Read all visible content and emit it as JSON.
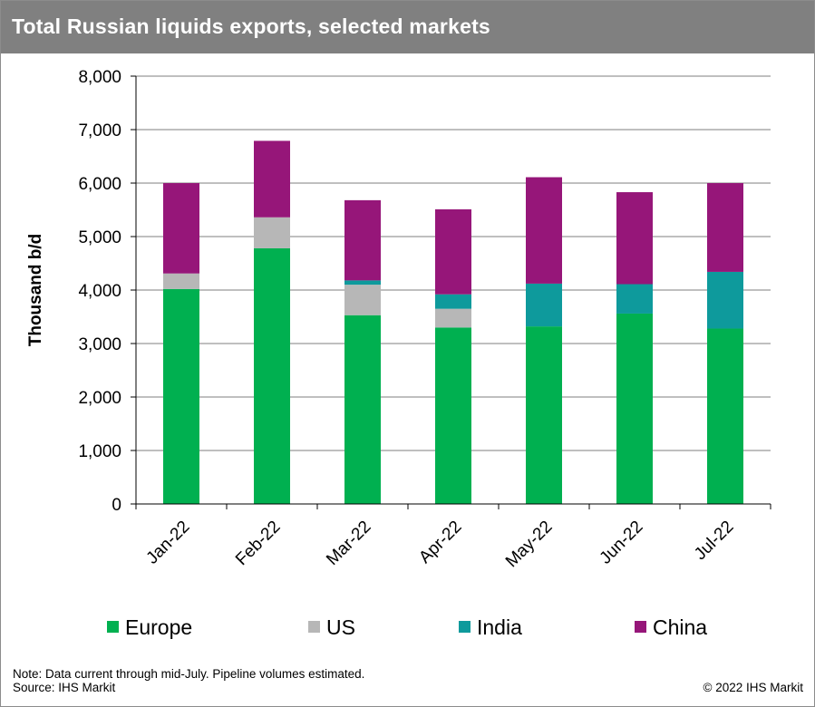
{
  "title": "Total Russian liquids exports, selected markets",
  "note_line1": "Note: Data current through mid-July. Pipeline volumes estimated.",
  "note_line2": "Source: IHS Markit",
  "copyright": "© 2022 IHS Markit",
  "colors": {
    "title_bar": "#808080",
    "Europe": "#00b050",
    "US": "#b7b7b7",
    "India": "#0e9a9c",
    "China": "#961679",
    "grid": "#7f7f7f"
  },
  "chart_data": {
    "type": "bar",
    "stacked": true,
    "title": "Total Russian liquids exports, selected markets",
    "xlabel": "",
    "ylabel": "Thousand b/d",
    "ylim": [
      0,
      8000
    ],
    "yticks": [
      "0",
      "1,000",
      "2,000",
      "3,000",
      "4,000",
      "5,000",
      "6,000",
      "7,000",
      "8,000"
    ],
    "categories": [
      "Jan-22",
      "Feb-22",
      "Mar-22",
      "Apr-22",
      "May-22",
      "Jun-22",
      "Jul-22"
    ],
    "series": [
      {
        "name": "Europe",
        "values": [
          4020,
          4780,
          3530,
          3300,
          3320,
          3560,
          3280
        ]
      },
      {
        "name": "US",
        "values": [
          290,
          580,
          570,
          350,
          0,
          0,
          0
        ]
      },
      {
        "name": "India",
        "values": [
          0,
          0,
          80,
          270,
          800,
          550,
          1060
        ]
      },
      {
        "name": "China",
        "values": [
          1690,
          1430,
          1500,
          1590,
          1990,
          1720,
          1660
        ]
      }
    ],
    "grid": true,
    "legend_position": "bottom"
  }
}
